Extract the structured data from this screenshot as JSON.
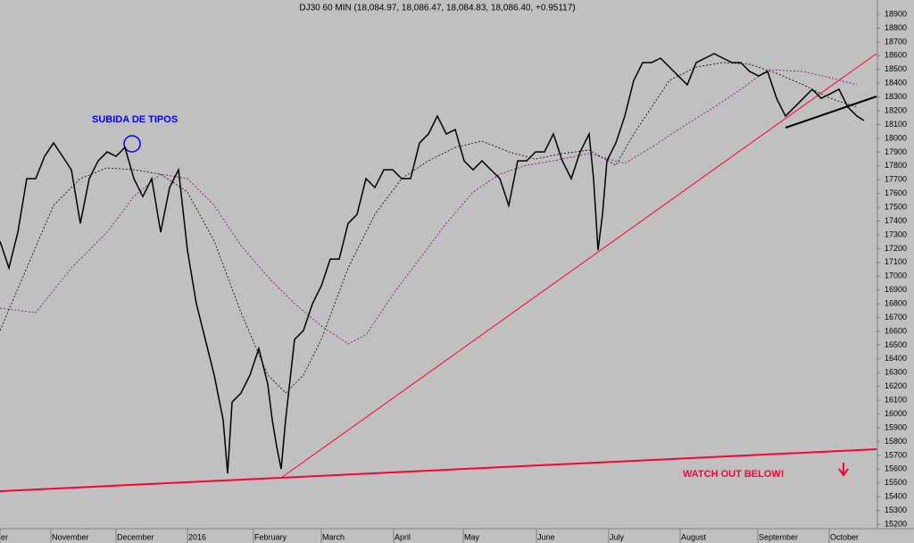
{
  "chart_data": {
    "type": "line",
    "title": "DJ30 60 MIN (18,084.97, 18,086.47, 18,084.83, 18,086.40, +0.95117)",
    "annotations": [
      "SUBIDA DE TIPOS",
      "WATCH OUT BELOW!"
    ],
    "x": [
      0,
      10,
      20,
      30,
      40,
      50,
      60,
      70,
      80,
      90,
      100,
      110,
      120,
      130,
      140,
      150,
      160,
      170,
      180,
      190,
      200,
      210,
      220,
      230,
      240,
      250,
      255,
      260,
      270,
      280,
      290,
      300,
      305,
      310,
      315,
      320,
      330,
      340,
      350,
      360,
      370,
      380,
      390,
      400,
      410,
      420,
      430,
      440,
      450,
      460,
      470,
      480,
      490,
      500,
      510,
      520,
      530,
      540,
      550,
      560,
      570,
      580,
      590,
      600,
      610,
      620,
      630,
      640,
      650,
      660,
      665,
      670,
      675,
      680,
      690,
      700,
      710,
      720,
      730,
      740,
      750,
      760,
      770,
      780,
      790,
      800,
      810,
      820,
      830,
      840,
      850,
      860,
      870,
      880,
      890,
      900,
      910,
      920,
      930,
      940,
      950,
      960,
      968
    ],
    "series": [
      {
        "name": "DJ30",
        "color": "#000000",
        "values": [
          17254,
          17060,
          17319,
          17708,
          17708,
          17870,
          17967,
          17870,
          17772,
          17383,
          17708,
          17837,
          17902,
          17870,
          17934,
          17708,
          17578,
          17708,
          17319,
          17643,
          17772,
          17189,
          16800,
          16541,
          16282,
          15958,
          15569,
          16087,
          16152,
          16282,
          16476,
          16217,
          15958,
          15763,
          15601,
          15958,
          16541,
          16606,
          16800,
          16930,
          17124,
          17124,
          17383,
          17448,
          17708,
          17643,
          17772,
          17772,
          17708,
          17708,
          17967,
          18032,
          18162,
          18032,
          18064,
          17837,
          17772,
          17837,
          17772,
          17708,
          17513,
          17837,
          17837,
          17902,
          17902,
          18032,
          17837,
          17708,
          17902,
          18032,
          17708,
          17189,
          17448,
          17837,
          17967,
          18162,
          18420,
          18550,
          18550,
          18582,
          18518,
          18453,
          18388,
          18550,
          18582,
          18615,
          18582,
          18550,
          18550,
          18485,
          18453,
          18485,
          18291,
          18162,
          18226,
          18291,
          18356,
          18291,
          18323,
          18356,
          18226,
          18162,
          18129
        ]
      }
    ],
    "xlim": [
      0,
      982
    ],
    "xticks": [
      {
        "value": 0,
        "label": "er"
      },
      {
        "value": 57,
        "label": "November"
      },
      {
        "value": 130,
        "label": "December"
      },
      {
        "value": 210,
        "label": "2016"
      },
      {
        "value": 284,
        "label": "February"
      },
      {
        "value": 360,
        "label": "March"
      },
      {
        "value": 441,
        "label": "April"
      },
      {
        "value": 519,
        "label": "May"
      },
      {
        "value": 601,
        "label": "June"
      },
      {
        "value": 682,
        "label": "July"
      },
      {
        "value": 762,
        "label": "August"
      },
      {
        "value": 849,
        "label": "September"
      },
      {
        "value": 929,
        "label": "October"
      }
    ],
    "ylim": [
      15168,
      19004
    ],
    "yticks": [
      15200,
      15300,
      15400,
      15500,
      15600,
      15700,
      15800,
      15900,
      16000,
      16100,
      16200,
      16300,
      16400,
      16500,
      16600,
      16700,
      16800,
      16900,
      17000,
      17100,
      17200,
      17300,
      17400,
      17500,
      17600,
      17700,
      17800,
      17900,
      18000,
      18100,
      18200,
      18300,
      18400,
      18500,
      18600,
      18700,
      18800,
      18900
    ]
  }
}
